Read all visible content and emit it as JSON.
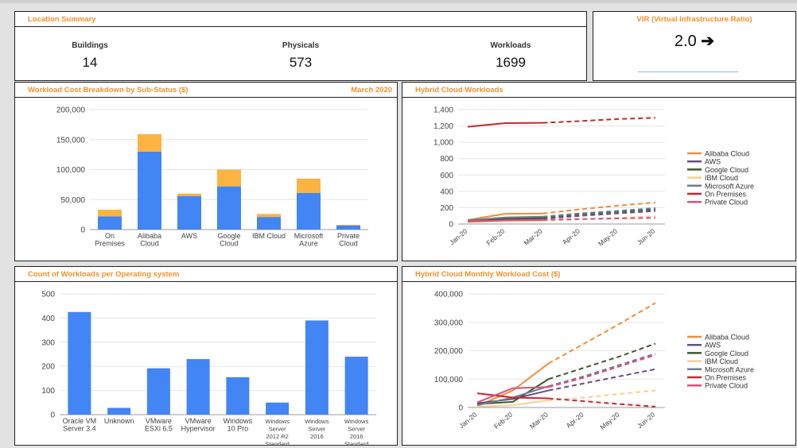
{
  "location_summary": {
    "title": "Location Summary",
    "stats": [
      {
        "label": "Buildings",
        "value": "14"
      },
      {
        "label": "Physicals",
        "value": "573"
      },
      {
        "label": "Workloads",
        "value": "1699"
      }
    ]
  },
  "vir": {
    "title": "VIR (Virtual Infrastructure Ratio)",
    "value": "2.0",
    "arrow": "➔"
  },
  "colors": {
    "bar_blue": "#4285f4",
    "bar_orange": "#fbb342",
    "alibaba": "#f28c3a",
    "aws": "#6b4e7f",
    "google": "#3d5a2f",
    "ibm": "#f7cf92",
    "azure": "#6c7f91",
    "onprem": "#c9272d",
    "private": "#dd4e7c"
  },
  "chart_data": [
    {
      "id": "cost_breakdown",
      "type": "bar",
      "stacked": true,
      "title": "Workload Cost Breakdown by Sub-Status ($)",
      "subtitle": "March 2020",
      "categories": [
        [
          "On",
          "Premises"
        ],
        [
          "Alibaba",
          "Cloud"
        ],
        [
          "AWS"
        ],
        [
          "Google",
          "Cloud"
        ],
        [
          "IBM Cloud"
        ],
        [
          "Microsoft",
          "Azure"
        ],
        [
          "Private",
          "Cloud"
        ]
      ],
      "series": [
        {
          "values": [
            22000,
            130000,
            56000,
            72000,
            21000,
            61000,
            7000
          ]
        },
        {
          "values": [
            11000,
            29000,
            4000,
            28000,
            5000,
            24000,
            1000
          ]
        }
      ],
      "ylim": [
        0,
        200000
      ],
      "yticks": [
        "0",
        "50,000",
        "100,000",
        "150,000",
        "200,000"
      ],
      "grid": true
    },
    {
      "id": "os_count",
      "type": "bar",
      "title": "Count of Workloads per Operating system",
      "categories": [
        [
          "Oracle VM",
          "Server 3.4"
        ],
        [
          "Unknown"
        ],
        [
          "VMware",
          "ESXi 6.5"
        ],
        [
          "VMware",
          "Hypervisor"
        ],
        [
          "Windows",
          "10 Pro"
        ],
        [
          "Windows",
          "Server",
          "2012 R2",
          "Standard"
        ],
        [
          "Windows",
          "Server",
          "2016"
        ],
        [
          "Windows",
          "Server",
          "2016",
          "Standard"
        ]
      ],
      "values": [
        425,
        28,
        192,
        230,
        155,
        50,
        390,
        240
      ],
      "ylim": [
        0,
        500
      ],
      "yticks": [
        "0",
        "100",
        "200",
        "300",
        "400",
        "500"
      ],
      "grid": true
    },
    {
      "id": "hybrid_workloads",
      "type": "line",
      "title": "Hybrid Cloud Workloads",
      "x": [
        "Jan-20",
        "Feb-20",
        "Mar-20",
        "Apr-20",
        "May-20",
        "Jun-20"
      ],
      "actual_through_index": 2,
      "ylim": [
        0,
        1400
      ],
      "yticks": [
        "0",
        "200",
        "400",
        "600",
        "800",
        "1,000",
        "1,200",
        "1,400"
      ],
      "legend": "right",
      "series": [
        {
          "name": "Alibaba Cloud",
          "color_key": "alibaba",
          "values": [
            50,
            125,
            128,
            180,
            225,
            262
          ]
        },
        {
          "name": "AWS",
          "color_key": "aws",
          "values": [
            40,
            60,
            65,
            100,
            130,
            160
          ]
        },
        {
          "name": "Google Cloud",
          "color_key": "google",
          "values": [
            35,
            70,
            80,
            120,
            150,
            180
          ]
        },
        {
          "name": "IBM Cloud",
          "color_key": "ibm",
          "values": [
            20,
            35,
            40,
            60,
            75,
            95
          ]
        },
        {
          "name": "Microsoft Azure",
          "color_key": "azure",
          "values": [
            45,
            80,
            90,
            130,
            160,
            195
          ]
        },
        {
          "name": "On Premises",
          "color_key": "onprem",
          "values": [
            1190,
            1235,
            1238,
            1260,
            1285,
            1300
          ]
        },
        {
          "name": "Private Cloud",
          "color_key": "private",
          "values": [
            30,
            45,
            50,
            60,
            68,
            75
          ]
        }
      ]
    },
    {
      "id": "hybrid_cost",
      "type": "line",
      "title": "Hybrid Cloud Monthly Workload Cost ($)",
      "x": [
        "Jan-20",
        "Feb-20",
        "Mar-20",
        "Apr-20",
        "May-20",
        "Jun-20"
      ],
      "actual_through_index": 2,
      "ylim": [
        0,
        400000
      ],
      "yticks": [
        "0",
        "100,000",
        "200,000",
        "300,000",
        "400,000"
      ],
      "legend": "right",
      "series": [
        {
          "name": "Alibaba Cloud",
          "color_key": "alibaba",
          "values": [
            5000,
            60000,
            155000,
            225000,
            295000,
            368000
          ]
        },
        {
          "name": "AWS",
          "color_key": "aws",
          "values": [
            15000,
            30000,
            60000,
            85000,
            110000,
            135000
          ]
        },
        {
          "name": "Google Cloud",
          "color_key": "google",
          "values": [
            12000,
            20000,
            100000,
            140000,
            180000,
            225000
          ]
        },
        {
          "name": "IBM Cloud",
          "color_key": "ibm",
          "values": [
            3000,
            8000,
            25000,
            35000,
            48000,
            60000
          ]
        },
        {
          "name": "Microsoft Azure",
          "color_key": "azure",
          "values": [
            8000,
            35000,
            75000,
            110000,
            150000,
            190000
          ]
        },
        {
          "name": "On Premises",
          "color_key": "onprem",
          "values": [
            50000,
            35000,
            32000,
            22000,
            12000,
            3000
          ]
        },
        {
          "name": "Private Cloud",
          "color_key": "private",
          "values": [
            18000,
            68000,
            72000,
            105000,
            145000,
            185000
          ]
        }
      ]
    }
  ]
}
